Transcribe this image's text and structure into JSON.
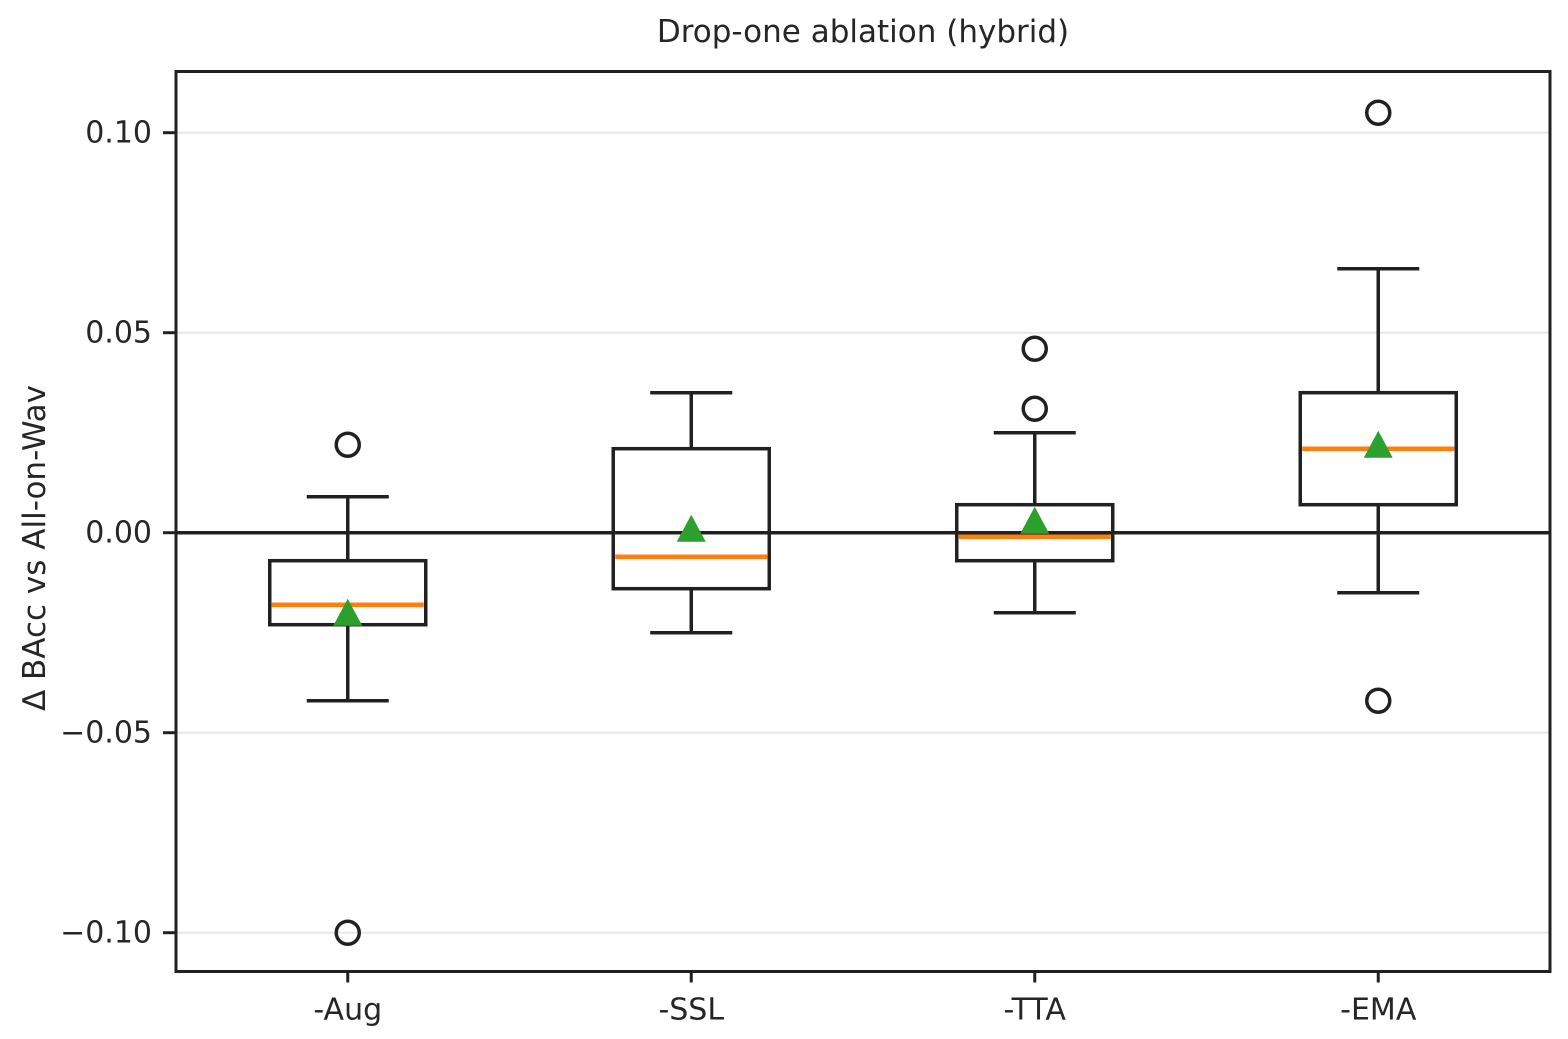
{
  "chart_data": {
    "type": "boxplot",
    "title": "Drop-one ablation (hybrid)",
    "ylabel": "Δ BAcc vs All-on-Wav",
    "xlabel": "",
    "categories": [
      "-Aug",
      "-SSL",
      "-TTA",
      "-EMA"
    ],
    "ylim": [
      -0.1097,
      0.1153
    ],
    "yticks": [
      0.1,
      0.05,
      0.0,
      -0.05,
      -0.1
    ],
    "ytick_labels": [
      "0.10",
      "0.05",
      "0.00",
      "−0.05",
      "−0.10"
    ],
    "grid": true,
    "zero_line": 0,
    "legend_position": "none",
    "series": [
      {
        "category": "-Aug",
        "whisker_low": -0.042,
        "q1": -0.023,
        "median": -0.018,
        "q3": -0.007,
        "whisker_high": 0.009,
        "mean": -0.02,
        "outliers": [
          0.022,
          -0.1
        ]
      },
      {
        "category": "-SSL",
        "whisker_low": -0.025,
        "q1": -0.014,
        "median": -0.006,
        "q3": 0.021,
        "whisker_high": 0.035,
        "mean": 0.001,
        "outliers": []
      },
      {
        "category": "-TTA",
        "whisker_low": -0.02,
        "q1": -0.007,
        "median": -0.001,
        "q3": 0.007,
        "whisker_high": 0.025,
        "mean": 0.003,
        "outliers": [
          0.046,
          0.031
        ]
      },
      {
        "category": "-EMA",
        "whisker_low": -0.015,
        "q1": 0.007,
        "median": 0.021,
        "q3": 0.035,
        "whisker_high": 0.066,
        "mean": 0.022,
        "outliers": [
          0.105,
          -0.042
        ]
      }
    ],
    "colors": {
      "box_edge": "#212121",
      "whisker": "#212121",
      "median": "#ff7f0e",
      "mean_marker": "#2ca02c",
      "outlier_edge": "#212121",
      "zero_line": "#212121",
      "grid": "#e7e7e7",
      "background": "#ffffff",
      "text": "#262626"
    }
  }
}
